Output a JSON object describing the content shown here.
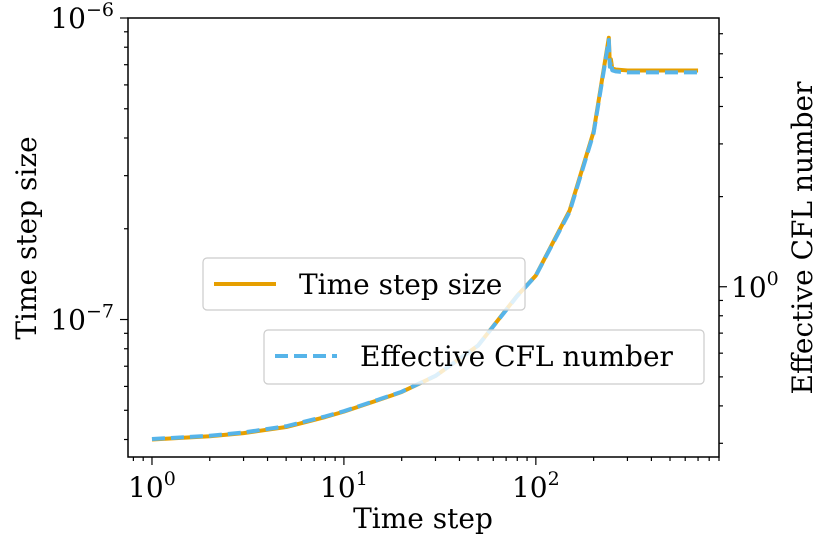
{
  "chart_data": {
    "type": "line",
    "xscale": "log",
    "yscale": "log",
    "xlabel": "Time step",
    "ylabel": "Time step size",
    "y2label": "Effective CFL number",
    "xlim": [
      0.75,
      900
    ],
    "ylim": [
      3.5e-08,
      1e-06
    ],
    "y2lim": [
      0.27,
      7.9
    ],
    "x_ticks": [
      {
        "value": 1,
        "base": "10",
        "exp": "0"
      },
      {
        "value": 10,
        "base": "10",
        "exp": "1"
      },
      {
        "value": 100,
        "base": "10",
        "exp": "2"
      }
    ],
    "y_ticks": [
      {
        "value": 1e-07,
        "base": "10",
        "exp": "−7"
      },
      {
        "value": 1e-06,
        "base": "10",
        "exp": "−6"
      }
    ],
    "y2_ticks": [
      {
        "value": 1,
        "base": "10",
        "exp": "0"
      }
    ],
    "series": [
      {
        "name": "Time step size",
        "axis": "left",
        "color": "#E69F00",
        "style": "solid",
        "x": [
          1,
          2,
          3,
          5,
          8,
          10,
          15,
          20,
          30,
          50,
          80,
          100,
          150,
          200,
          240,
          243,
          246,
          250,
          260,
          300,
          400,
          500,
          700
        ],
        "y": [
          4e-08,
          4.1e-08,
          4.2e-08,
          4.4e-08,
          4.75e-08,
          4.95e-08,
          5.4e-08,
          5.75e-08,
          6.5e-08,
          8.2e-08,
          1.2e-07,
          1.4e-07,
          2.3e-07,
          4.2e-07,
          8.6e-07,
          7e-07,
          7.3e-07,
          6.8e-07,
          6.75e-07,
          6.7e-07,
          6.7e-07,
          6.7e-07,
          6.7e-07
        ]
      },
      {
        "name": "Effective CFL number",
        "axis": "right",
        "color": "#56B4E9",
        "style": "dashed",
        "x": [
          1,
          2,
          3,
          5,
          8,
          10,
          15,
          20,
          30,
          50,
          80,
          100,
          150,
          200,
          240,
          243,
          246,
          250,
          260,
          300,
          400,
          500,
          700
        ],
        "y": [
          0.31,
          0.318,
          0.326,
          0.342,
          0.369,
          0.384,
          0.419,
          0.446,
          0.504,
          0.636,
          0.931,
          1.09,
          1.78,
          3.26,
          6.67,
          5.43,
          5.66,
          5.28,
          5.24,
          5.2,
          5.2,
          5.2,
          5.2
        ]
      }
    ],
    "legends": [
      {
        "entries": [
          "Time step size"
        ],
        "placement": "center-left"
      },
      {
        "entries": [
          "Effective CFL number"
        ],
        "placement": "lower-right"
      }
    ]
  }
}
